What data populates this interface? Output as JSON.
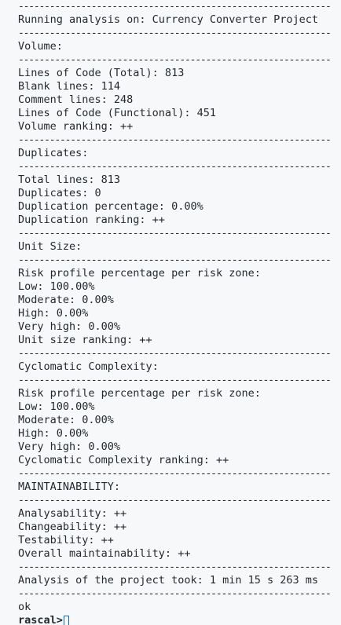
{
  "separator": "------------------------------------------------------------",
  "header": "Running analysis on: Currency Converter Project",
  "volume": {
    "title": "Volume:",
    "lines": [
      "Lines of Code (Total): 813",
      "Blank lines: 114",
      "Comment lines: 248",
      "Lines of Code (Functional): 451",
      "Volume ranking: ++"
    ]
  },
  "duplicates": {
    "title": "Duplicates:",
    "lines": [
      "Total lines: 813",
      "Duplicates: 0",
      "Duplication percentage: 0.00%",
      "Duplication ranking: ++"
    ]
  },
  "unit_size": {
    "title": "Unit Size:",
    "lines": [
      "Risk profile percentage per risk zone:",
      "Low: 100.00%",
      "Moderate: 0.00%",
      "High: 0.00%",
      "Very high: 0.00%",
      "Unit size ranking: ++"
    ]
  },
  "complexity": {
    "title": "Cyclomatic Complexity:",
    "lines": [
      "Risk profile percentage per risk zone:",
      "Low: 100.00%",
      "Moderate: 0.00%",
      "High: 0.00%",
      "Very high: 0.00%",
      "Cyclomatic Complexity ranking: ++"
    ]
  },
  "maintainability": {
    "title": "MAINTAINABILITY:",
    "lines": [
      "Analysability: ++",
      "Changeability: ++",
      "Testability: ++",
      "Overall maintainability: ++"
    ]
  },
  "timing": "Analysis of the project took: 1 min 15 s 263 ms",
  "result": "ok",
  "prompt": "rascal>",
  "colors": {
    "background": "#f6f8fa",
    "text": "#24292f",
    "cursor": "#0969da"
  }
}
